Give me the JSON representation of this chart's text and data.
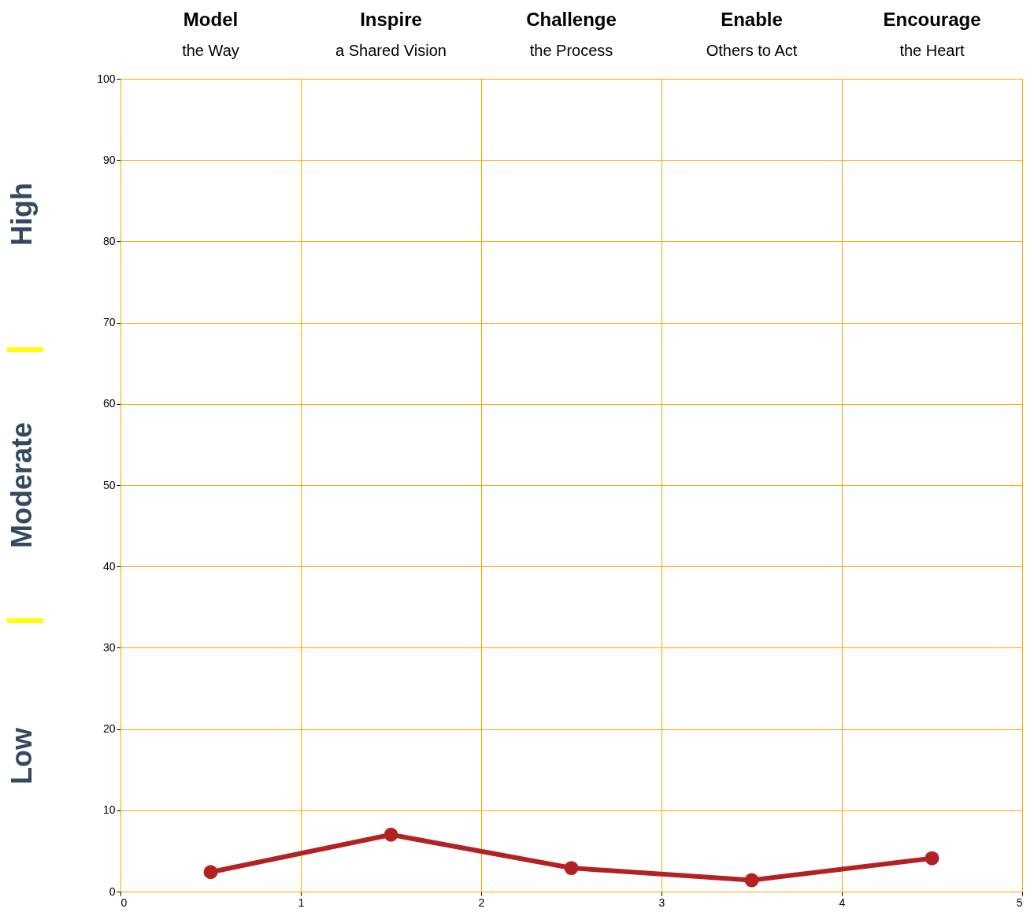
{
  "chart_data": {
    "type": "line",
    "x": [
      0.5,
      1.5,
      2.5,
      3.5,
      4.5
    ],
    "series": [
      {
        "color": "#b22222",
        "values": [
          2.4,
          7.0,
          2.9,
          1.4,
          4.1
        ]
      }
    ],
    "xlim": [
      0,
      5
    ],
    "xticks": [
      0,
      1,
      2,
      3,
      4,
      5
    ],
    "ylim": [
      0,
      100
    ],
    "yticks": [
      0,
      10,
      20,
      30,
      40,
      50,
      60,
      70,
      80,
      90,
      100
    ],
    "grid": true,
    "marker": "circle",
    "line_style": "solid",
    "annotations": [
      "Model",
      "the Way",
      "Inspire",
      "a Shared Vision",
      "Challenge",
      "the Process",
      "Enable",
      "Others to Act",
      "Encourage",
      "the Heart",
      "High",
      "Moderate",
      "Low"
    ]
  }
}
